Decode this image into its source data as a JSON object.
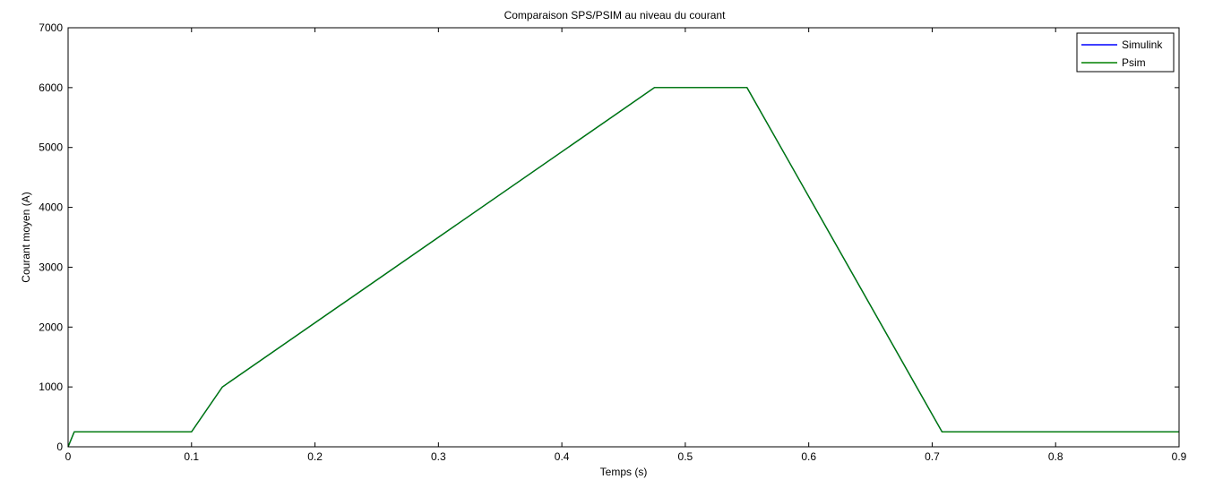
{
  "chart_data": {
    "type": "line",
    "title": "Comparaison SPS/PSIM au niveau du courant",
    "xlabel": "Temps (s)",
    "ylabel": "Courant moyen (A)",
    "xlim": [
      0,
      0.9
    ],
    "ylim": [
      0,
      7000
    ],
    "xticks": [
      0,
      0.1,
      0.2,
      0.3,
      0.4,
      0.5,
      0.6,
      0.7,
      0.8,
      0.9
    ],
    "xtick_labels": [
      "0",
      "0.1",
      "0.2",
      "0.3",
      "0.4",
      "0.5",
      "0.6",
      "0.7",
      "0.8",
      "0.9"
    ],
    "yticks": [
      0,
      1000,
      2000,
      3000,
      4000,
      5000,
      6000,
      7000
    ],
    "ytick_labels": [
      "0",
      "1000",
      "2000",
      "3000",
      "4000",
      "5000",
      "6000",
      "7000"
    ],
    "grid": false,
    "legend_position": "top-right",
    "series": [
      {
        "name": "Simulink",
        "color": "#0000ff",
        "x": [
          0,
          0.005,
          0.1,
          0.125,
          0.475,
          0.55,
          0.708,
          0.9
        ],
        "y": [
          0,
          250,
          250,
          1000,
          6000,
          6000,
          250,
          250
        ]
      },
      {
        "name": "Psim",
        "color": "#008000",
        "x": [
          0,
          0.005,
          0.1,
          0.125,
          0.475,
          0.55,
          0.708,
          0.9
        ],
        "y": [
          0,
          250,
          250,
          1000,
          6000,
          6000,
          250,
          250
        ]
      }
    ]
  }
}
